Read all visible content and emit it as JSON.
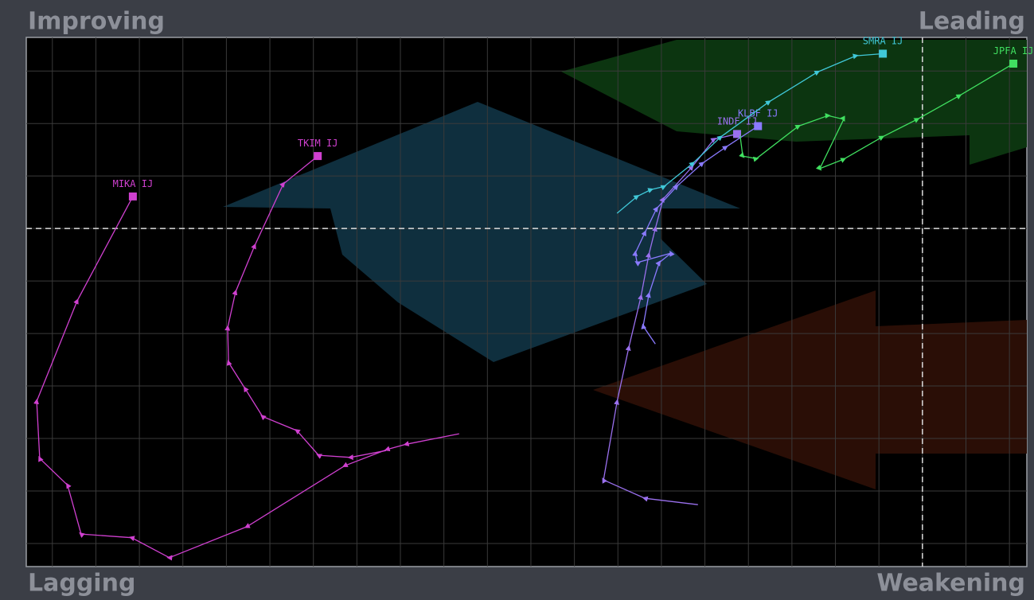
{
  "chart_data": {
    "type": "line",
    "quadrant_labels": {
      "top_left": "Improving",
      "top_right": "Leading",
      "bottom_left": "Lagging",
      "bottom_right": "Weakening"
    },
    "xlim": [
      79.4,
      102.4
    ],
    "ylim": [
      93.56,
      103.64
    ],
    "xticks": [
      80,
      81,
      82,
      83,
      84,
      85,
      86,
      87,
      88,
      89,
      90,
      91,
      92,
      93,
      94,
      95,
      96,
      97,
      98,
      99,
      100,
      101,
      102
    ],
    "yticks": [
      94,
      95,
      96,
      97,
      98,
      99,
      100,
      101,
      102,
      103
    ],
    "x_ref": 100,
    "y_ref": 100,
    "grid": true,
    "series": [
      {
        "name": "MIKA IJ",
        "color": "#d040d0",
        "x": [
          89.35,
          88.13,
          87.69,
          86.72,
          84.47,
          82.69,
          81.82,
          80.66,
          80.35,
          79.71,
          79.64,
          80.57,
          81.85
        ],
        "y": [
          96.09,
          95.89,
          95.79,
          95.48,
          94.32,
          93.73,
          94.11,
          94.18,
          95.11,
          95.62,
          96.71,
          98.62,
          100.61
        ]
      },
      {
        "name": "TKIM IJ",
        "color": "#d040d0",
        "x": [
          87.67,
          86.85,
          86.12,
          85.62,
          84.83,
          84.43,
          84.05,
          84.03,
          84.21,
          84.65,
          85.31,
          86.1
        ],
        "y": [
          95.77,
          95.64,
          95.68,
          96.15,
          96.42,
          96.95,
          97.45,
          98.11,
          98.79,
          99.67,
          100.85,
          101.38
        ]
      },
      {
        "name": "INDF IJ",
        "color": "#9a70ee",
        "x": [
          94.84,
          93.62,
          92.67,
          92.98,
          93.25,
          93.53,
          93.71,
          93.86,
          94.04,
          94.7,
          95.21,
          95.74
        ],
        "y": [
          94.74,
          94.86,
          95.21,
          96.7,
          97.73,
          98.7,
          99.5,
          100.0,
          100.56,
          101.17,
          101.7,
          101.8
        ]
      },
      {
        "name": "KLBF IJ",
        "color": "#8a7aff",
        "x": [
          93.86,
          93.58,
          93.71,
          93.95,
          94.22,
          93.44,
          93.4,
          93.62,
          93.89,
          94.35,
          94.94,
          95.48,
          96.22
        ],
        "y": [
          97.8,
          98.14,
          98.74,
          99.35,
          99.53,
          99.35,
          99.53,
          99.92,
          100.38,
          100.8,
          101.24,
          101.55,
          101.95
        ]
      },
      {
        "name": "SMRA IJ",
        "color": "#40c8d8",
        "x": [
          92.98,
          93.44,
          93.76,
          94.06,
          94.72,
          95.36,
          96.47,
          97.59,
          98.47,
          99.09
        ],
        "y": [
          100.29,
          100.61,
          100.74,
          100.8,
          101.24,
          101.74,
          102.41,
          102.98,
          103.29,
          103.33
        ]
      },
      {
        "name": "JPFA IJ",
        "color": "#40e060",
        "x": [
          95.81,
          95.87,
          96.18,
          97.15,
          97.83,
          98.19,
          97.64,
          98.19,
          99.07,
          99.88,
          100.85,
          102.09
        ],
        "y": [
          101.77,
          101.38,
          101.33,
          101.95,
          102.15,
          102.08,
          101.14,
          101.32,
          101.74,
          102.08,
          102.53,
          103.14
        ]
      }
    ]
  }
}
